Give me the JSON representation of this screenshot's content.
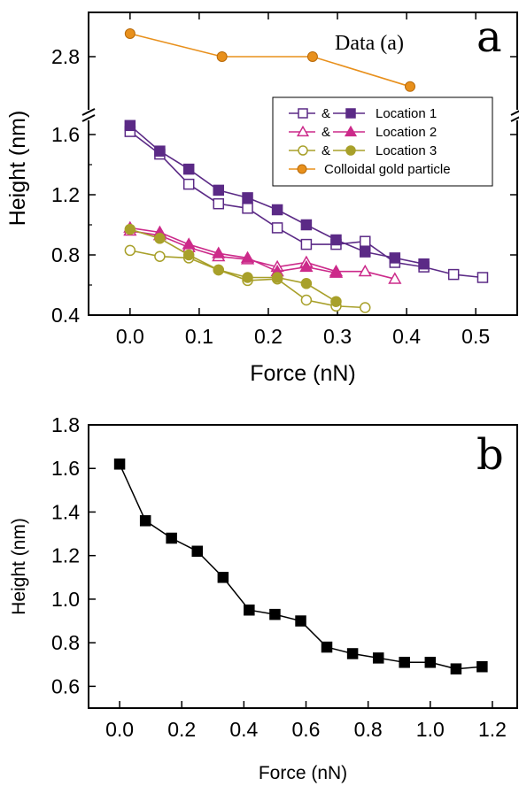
{
  "chart_data": [
    {
      "type": "line",
      "panel_label": "a",
      "annotation": "Data (a)",
      "xlabel": "Force (nN)",
      "ylabel": "Height (nm)",
      "xlim": [
        -0.06,
        0.56
      ],
      "xticks": [
        "0.0",
        "0.1",
        "0.2",
        "0.3",
        "0.4",
        "0.5"
      ],
      "yticks_lower": [
        "0.4",
        "0.8",
        "1.2",
        "1.6"
      ],
      "yticks_upper": [
        "2.8"
      ],
      "ylim_lower": [
        0.4,
        1.7
      ],
      "ylim_upper": [
        2.6,
        3.0
      ],
      "axis_break": true,
      "legend_position": "right",
      "legend": [
        {
          "label": "Location 1",
          "amp": "&"
        },
        {
          "label": "Location 2",
          "amp": "&"
        },
        {
          "label": "Location 3",
          "amp": "&"
        },
        {
          "label": "Colloidal gold particle",
          "amp": ""
        }
      ],
      "colors": {
        "location1": "#5b2a86",
        "location2": "#cc2a8a",
        "location3": "#a8a02a",
        "gold": "#e8901c"
      },
      "series": [
        {
          "name": "Location 1",
          "marker": "square-open",
          "color": "#5b2a86",
          "x": [
            0.0,
            0.043,
            0.085,
            0.128,
            0.17,
            0.213,
            0.255,
            0.298,
            0.34,
            0.383,
            0.425,
            0.468,
            0.51
          ],
          "y": [
            1.62,
            1.47,
            1.27,
            1.14,
            1.11,
            0.98,
            0.87,
            0.87,
            0.89,
            0.75,
            0.72,
            0.67,
            0.65
          ]
        },
        {
          "name": "Location 1",
          "marker": "square-filled",
          "color": "#5b2a86",
          "x": [
            0.0,
            0.043,
            0.085,
            0.128,
            0.17,
            0.213,
            0.255,
            0.298,
            0.34,
            0.383,
            0.425
          ],
          "y": [
            1.66,
            1.49,
            1.37,
            1.23,
            1.18,
            1.1,
            1.0,
            0.9,
            0.82,
            0.78,
            0.74
          ]
        },
        {
          "name": "Location 2",
          "marker": "triangle-open",
          "color": "#cc2a8a",
          "x": [
            0.0,
            0.043,
            0.085,
            0.128,
            0.17,
            0.213,
            0.255,
            0.298,
            0.34,
            0.383
          ],
          "y": [
            0.96,
            0.93,
            0.85,
            0.79,
            0.77,
            0.72,
            0.75,
            0.69,
            0.69,
            0.64
          ]
        },
        {
          "name": "Location 2",
          "marker": "triangle-filled",
          "color": "#cc2a8a",
          "x": [
            0.0,
            0.043,
            0.085,
            0.128,
            0.17,
            0.213,
            0.255,
            0.298
          ],
          "y": [
            0.98,
            0.95,
            0.87,
            0.81,
            0.78,
            0.69,
            0.72,
            0.68
          ]
        },
        {
          "name": "Location 3",
          "marker": "circle-open",
          "color": "#a8a02a",
          "x": [
            0.0,
            0.043,
            0.085,
            0.128,
            0.17,
            0.213,
            0.255,
            0.298,
            0.34
          ],
          "y": [
            0.83,
            0.79,
            0.78,
            0.7,
            0.63,
            0.64,
            0.5,
            0.46,
            0.45
          ]
        },
        {
          "name": "Location 3",
          "marker": "circle-filled",
          "color": "#a8a02a",
          "x": [
            0.0,
            0.043,
            0.085,
            0.128,
            0.17,
            0.213,
            0.255,
            0.298
          ],
          "y": [
            0.97,
            0.91,
            0.8,
            0.7,
            0.65,
            0.65,
            0.61,
            0.49
          ]
        },
        {
          "name": "Colloidal gold particle",
          "marker": "circle-gold",
          "color": "#e8901c",
          "x": [
            0.0,
            0.133,
            0.264,
            0.405
          ],
          "y": [
            2.9,
            2.8,
            2.8,
            2.67
          ]
        }
      ]
    },
    {
      "type": "line",
      "panel_label": "b",
      "xlabel": "Force (nN)",
      "ylabel": "Height (nm)",
      "xlim": [
        -0.1,
        1.28
      ],
      "ylim": [
        0.5,
        1.8
      ],
      "xticks": [
        "0.0",
        "0.2",
        "0.4",
        "0.6",
        "0.8",
        "1.0",
        "1.2"
      ],
      "yticks": [
        "0.6",
        "0.8",
        "1.0",
        "1.2",
        "1.4",
        "1.6",
        "1.8"
      ],
      "series": [
        {
          "marker": "square-filled",
          "color": "#000000",
          "x": [
            0.0,
            0.083,
            0.167,
            0.25,
            0.333,
            0.417,
            0.5,
            0.583,
            0.667,
            0.75,
            0.833,
            0.917,
            1.0,
            1.083,
            1.167
          ],
          "y": [
            1.62,
            1.36,
            1.28,
            1.22,
            1.1,
            0.95,
            0.93,
            0.9,
            0.78,
            0.75,
            0.73,
            0.71,
            0.71,
            0.68,
            0.69
          ]
        }
      ]
    }
  ]
}
